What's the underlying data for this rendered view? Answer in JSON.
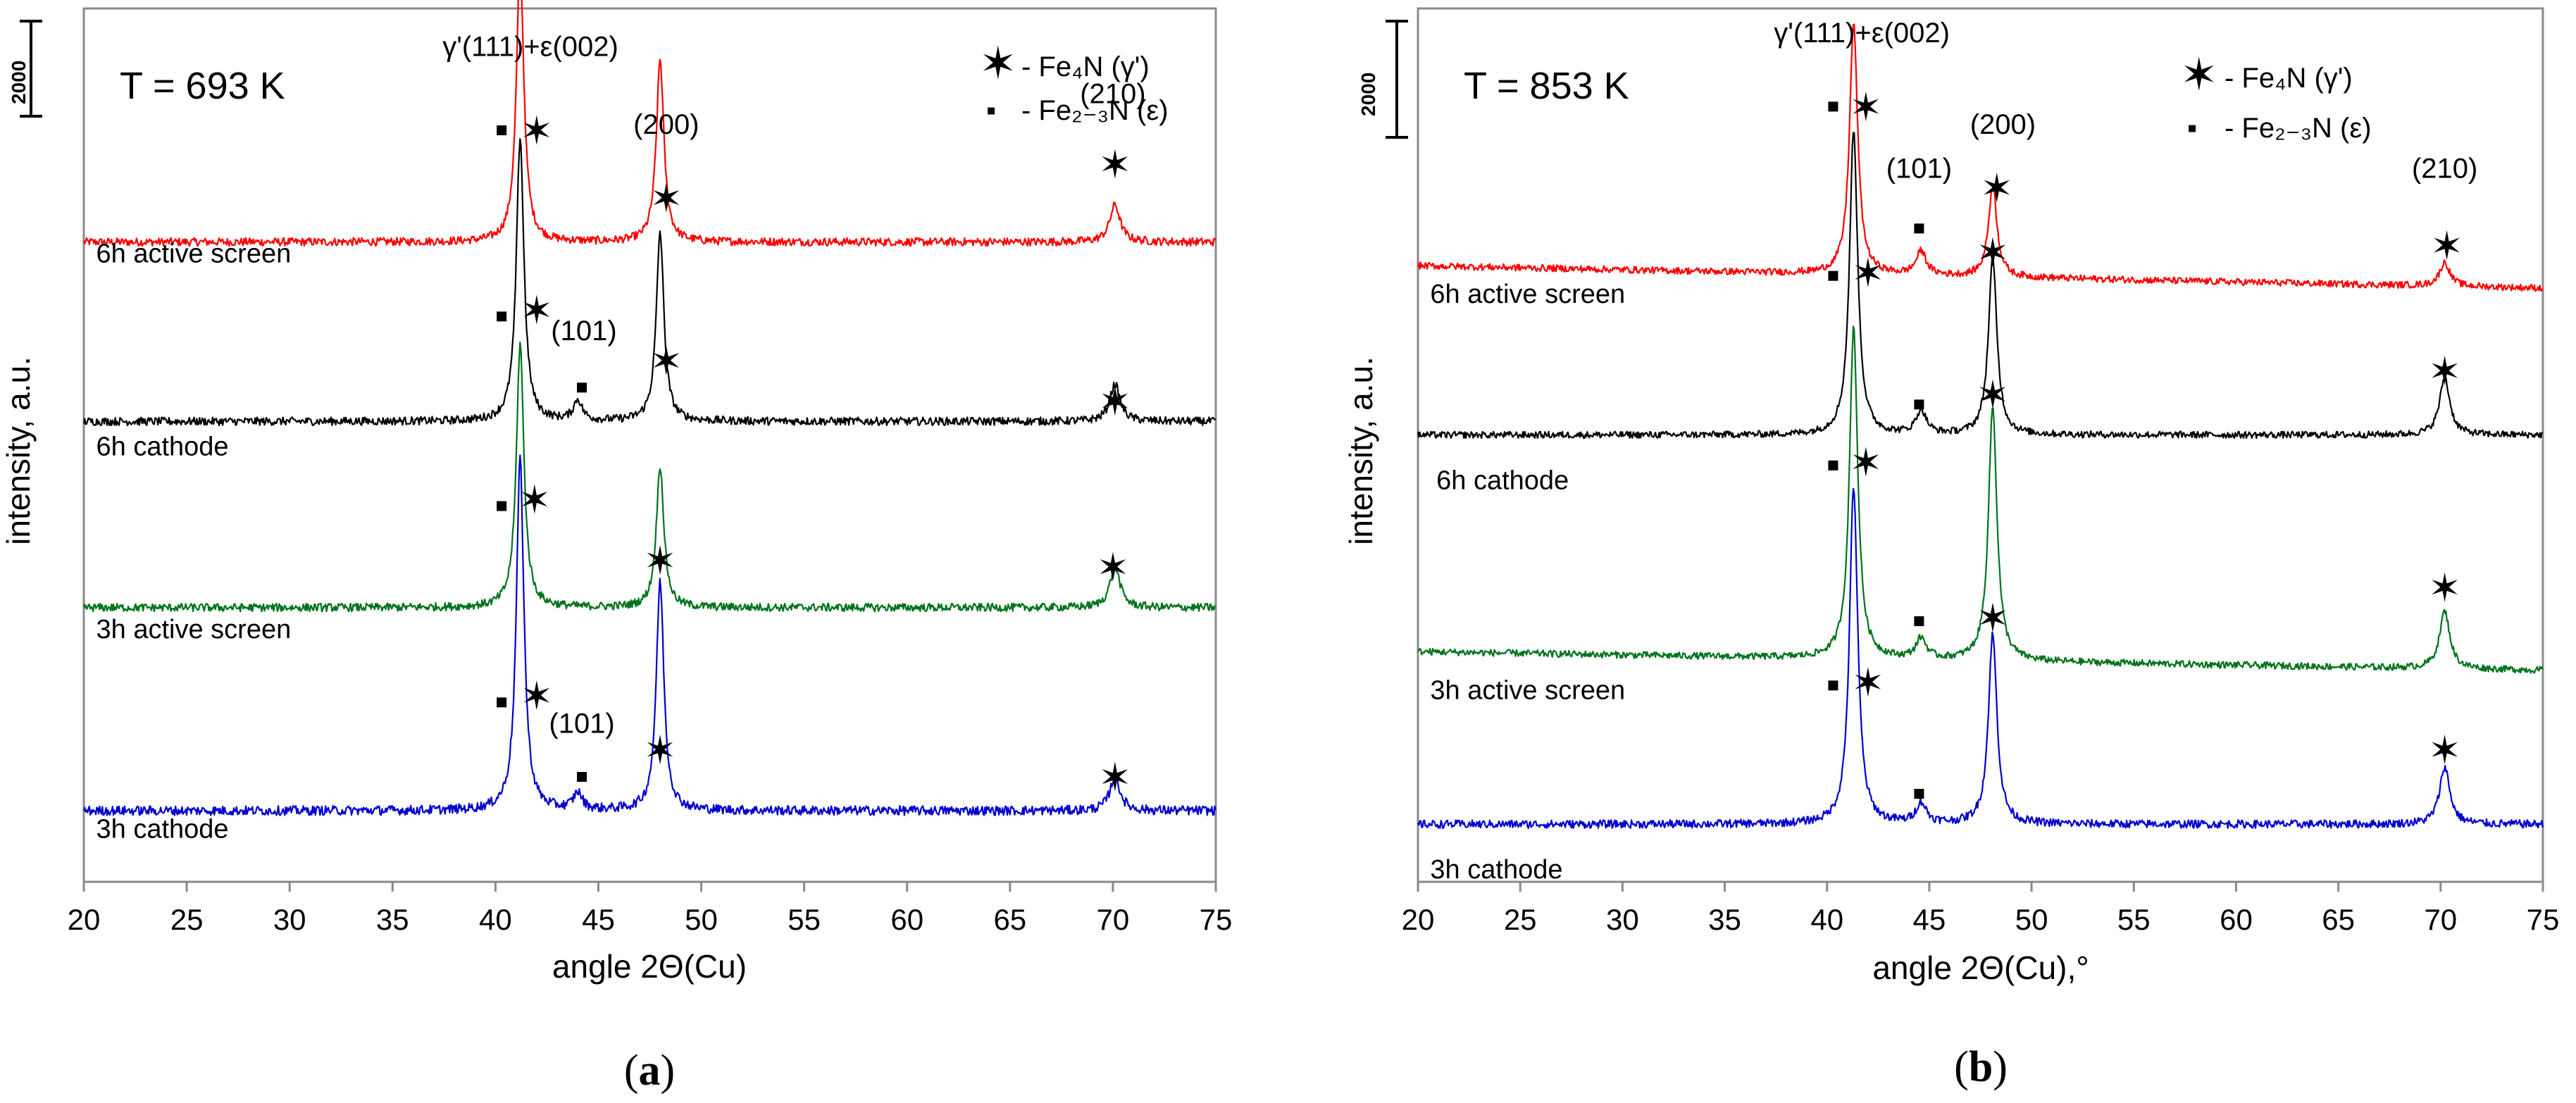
{
  "chart_data": [
    {
      "id": "a",
      "type": "line",
      "panel_label": "a",
      "title": "T = 693 K",
      "xlabel": "angle 2Θ(Cu)",
      "ylabel": "intensity, a.u.",
      "xlim": [
        20,
        75
      ],
      "xticks": [
        20,
        25,
        30,
        35,
        40,
        45,
        50,
        55,
        60,
        65,
        70,
        75
      ],
      "scale_bar": "2000",
      "legend": [
        {
          "symbol": "✶",
          "text": "- Fe₄N (γ')"
        },
        {
          "symbol": "▪",
          "text": "- Fe₂₋₃N (ε)"
        }
      ],
      "series": [
        {
          "name": "6h active screen",
          "color": "#ff0000",
          "baseline": 9.45,
          "noise": 0.06,
          "peaks": [
            {
              "x": 41.2,
              "h": 4.1,
              "w": 0.22
            },
            {
              "x": 48.0,
              "h": 2.7,
              "w": 0.22
            },
            {
              "x": 70.1,
              "h": 0.55,
              "w": 0.3
            }
          ]
        },
        {
          "name": "6h cathode",
          "color": "#000000",
          "baseline": 6.8,
          "noise": 0.06,
          "peaks": [
            {
              "x": 41.2,
              "h": 4.2,
              "w": 0.22
            },
            {
              "x": 44.0,
              "h": 0.3,
              "w": 0.25
            },
            {
              "x": 48.0,
              "h": 2.8,
              "w": 0.22
            },
            {
              "x": 70.1,
              "h": 0.55,
              "w": 0.3
            }
          ]
        },
        {
          "name": "3h active screen",
          "color": "#00731b",
          "baseline": 4.05,
          "noise": 0.06,
          "peaks": [
            {
              "x": 41.2,
              "h": 3.9,
              "w": 0.22
            },
            {
              "x": 48.0,
              "h": 2.1,
              "w": 0.22
            },
            {
              "x": 70.1,
              "h": 0.6,
              "w": 0.3
            }
          ]
        },
        {
          "name": "3h cathode",
          "color": "#0000d0",
          "baseline": 1.05,
          "noise": 0.07,
          "peaks": [
            {
              "x": 41.2,
              "h": 5.2,
              "w": 0.22
            },
            {
              "x": 44.0,
              "h": 0.25,
              "w": 0.25
            },
            {
              "x": 48.0,
              "h": 3.4,
              "w": 0.22
            },
            {
              "x": 70.1,
              "h": 0.5,
              "w": 0.3
            }
          ]
        }
      ],
      "markers": [
        {
          "type": "square",
          "x": 40.3,
          "y": 11.1
        },
        {
          "type": "star",
          "x": 42.0,
          "y": 11.1
        },
        {
          "type": "star",
          "x": 48.3,
          "y": 10.1
        },
        {
          "type": "star",
          "x": 70.1,
          "y": 10.6
        },
        {
          "type": "square",
          "x": 40.3,
          "y": 8.35
        },
        {
          "type": "star",
          "x": 42.0,
          "y": 8.45
        },
        {
          "type": "square",
          "x": 44.2,
          "y": 7.3
        },
        {
          "type": "star",
          "x": 48.3,
          "y": 7.7
        },
        {
          "type": "star",
          "x": 70.1,
          "y": 7.1
        },
        {
          "type": "square",
          "x": 40.3,
          "y": 5.55
        },
        {
          "type": "star",
          "x": 41.9,
          "y": 5.65
        },
        {
          "type": "star",
          "x": 48.0,
          "y": 4.75
        },
        {
          "type": "star",
          "x": 70.0,
          "y": 4.65
        },
        {
          "type": "square",
          "x": 40.3,
          "y": 2.65
        },
        {
          "type": "star",
          "x": 42.0,
          "y": 2.75
        },
        {
          "type": "square",
          "x": 44.2,
          "y": 1.55
        },
        {
          "type": "star",
          "x": 48.0,
          "y": 1.95
        },
        {
          "type": "star",
          "x": 70.1,
          "y": 1.55
        }
      ],
      "annotations": [
        {
          "text": "γ'(111)+ε(002)",
          "x": 41.7,
          "y": 12.2
        },
        {
          "text": "(200)",
          "x": 48.3,
          "y": 11.05
        },
        {
          "text": "(210)",
          "x": 70.0,
          "y": 11.5
        },
        {
          "text": "(101)",
          "x": 44.3,
          "y": 8.0
        },
        {
          "text": "(101)",
          "x": 44.2,
          "y": 2.2
        }
      ],
      "sample_labels": [
        {
          "text": "6h active screen",
          "x": 20.6,
          "y": 9.15
        },
        {
          "text": "6h cathode",
          "x": 20.6,
          "y": 6.3
        },
        {
          "text": "3h active screen",
          "x": 20.6,
          "y": 3.6
        },
        {
          "text": "3h cathode",
          "x": 20.6,
          "y": 0.65
        }
      ]
    },
    {
      "id": "b",
      "type": "line",
      "panel_label": "b",
      "title": "T = 853 K",
      "xlabel": "angle 2Θ(Cu),°",
      "ylabel": "intensity, a.u.",
      "xlim": [
        20,
        75
      ],
      "xticks": [
        20,
        25,
        30,
        35,
        40,
        45,
        50,
        55,
        60,
        65,
        70,
        75
      ],
      "scale_bar": "2000",
      "legend": [
        {
          "symbol": "✶",
          "text": "- Fe₄N (γ')"
        },
        {
          "symbol": "▪",
          "text": "- Fe₂₋₃N (ε)"
        }
      ],
      "series": [
        {
          "name": "6h active screen",
          "color": "#ff0000",
          "baseline": 9.1,
          "noise": 0.05,
          "slope": -0.006,
          "peaks": [
            {
              "x": 41.3,
              "h": 3.7,
              "w": 0.24
            },
            {
              "x": 44.6,
              "h": 0.35,
              "w": 0.3
            },
            {
              "x": 48.1,
              "h": 1.35,
              "w": 0.25
            },
            {
              "x": 70.2,
              "h": 0.35,
              "w": 0.3
            }
          ]
        },
        {
          "name": "6h cathode",
          "color": "#000000",
          "baseline": 6.6,
          "noise": 0.05,
          "peaks": [
            {
              "x": 41.3,
              "h": 4.5,
              "w": 0.24
            },
            {
              "x": 44.6,
              "h": 0.35,
              "w": 0.3
            },
            {
              "x": 48.1,
              "h": 2.6,
              "w": 0.25
            },
            {
              "x": 70.2,
              "h": 0.85,
              "w": 0.3
            }
          ]
        },
        {
          "name": "3h active screen",
          "color": "#00731b",
          "baseline": 3.4,
          "noise": 0.05,
          "slope": -0.005,
          "peaks": [
            {
              "x": 41.3,
              "h": 4.9,
              "w": 0.24
            },
            {
              "x": 44.6,
              "h": 0.3,
              "w": 0.3
            },
            {
              "x": 48.1,
              "h": 3.75,
              "w": 0.25
            },
            {
              "x": 70.2,
              "h": 0.85,
              "w": 0.3
            }
          ]
        },
        {
          "name": "3h cathode",
          "color": "#0000d0",
          "baseline": 0.85,
          "noise": 0.06,
          "peaks": [
            {
              "x": 41.3,
              "h": 5.0,
              "w": 0.24
            },
            {
              "x": 44.6,
              "h": 0.3,
              "w": 0.3
            },
            {
              "x": 48.1,
              "h": 2.8,
              "w": 0.25
            },
            {
              "x": 70.2,
              "h": 0.85,
              "w": 0.3
            }
          ]
        }
      ],
      "markers": [
        {
          "type": "square",
          "x": 40.3,
          "y": 11.45
        },
        {
          "type": "star",
          "x": 41.9,
          "y": 11.45
        },
        {
          "type": "square",
          "x": 44.5,
          "y": 9.65
        },
        {
          "type": "star",
          "x": 48.3,
          "y": 10.25
        },
        {
          "type": "star",
          "x": 70.3,
          "y": 9.4
        },
        {
          "type": "square",
          "x": 40.3,
          "y": 8.95
        },
        {
          "type": "star",
          "x": 42.0,
          "y": 9.0
        },
        {
          "type": "square",
          "x": 44.5,
          "y": 7.05
        },
        {
          "type": "star",
          "x": 48.1,
          "y": 9.3
        },
        {
          "type": "star",
          "x": 70.2,
          "y": 7.55
        },
        {
          "type": "square",
          "x": 40.3,
          "y": 6.15
        },
        {
          "type": "star",
          "x": 41.9,
          "y": 6.2
        },
        {
          "type": "square",
          "x": 44.5,
          "y": 3.85
        },
        {
          "type": "star",
          "x": 48.1,
          "y": 7.2
        },
        {
          "type": "star",
          "x": 70.2,
          "y": 4.35
        },
        {
          "type": "square",
          "x": 40.3,
          "y": 2.9
        },
        {
          "type": "star",
          "x": 42.0,
          "y": 2.95
        },
        {
          "type": "square",
          "x": 44.5,
          "y": 1.3
        },
        {
          "type": "star",
          "x": 48.1,
          "y": 3.9
        },
        {
          "type": "star",
          "x": 70.2,
          "y": 1.95
        }
      ],
      "annotations": [
        {
          "text": "γ'(111)+ε(002)",
          "x": 41.7,
          "y": 12.4
        },
        {
          "text": "(101)",
          "x": 44.5,
          "y": 10.4
        },
        {
          "text": "(200)",
          "x": 48.6,
          "y": 11.05
        },
        {
          "text": "(210)",
          "x": 70.2,
          "y": 10.4
        }
      ],
      "sample_labels": [
        {
          "text": "6h active screen",
          "x": 20.6,
          "y": 8.55
        },
        {
          "text": "6h cathode",
          "x": 20.9,
          "y": 5.8
        },
        {
          "text": "3h active screen",
          "x": 20.6,
          "y": 2.7
        },
        {
          "text": "3h cathode",
          "x": 20.6,
          "y": 0.05
        }
      ]
    }
  ]
}
